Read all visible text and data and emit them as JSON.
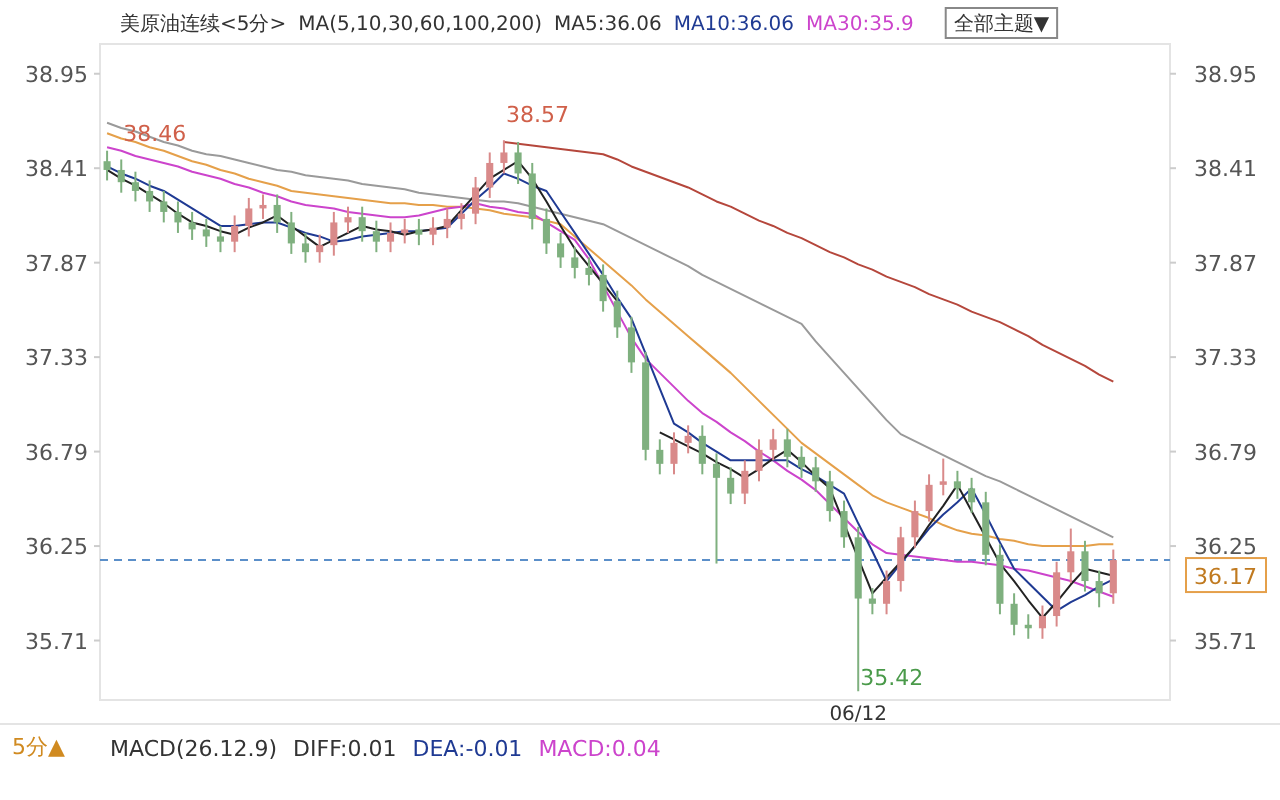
{
  "chart_data": {
    "type": "candlestick",
    "categories": [
      null,
      null,
      null,
      null,
      null,
      null,
      null,
      null,
      null,
      null,
      null,
      null,
      null,
      null,
      null,
      null,
      null,
      null,
      null,
      null,
      null,
      null,
      null,
      null,
      null,
      null,
      null,
      null,
      null,
      null,
      null,
      null,
      null,
      null,
      null,
      null,
      null,
      null,
      null,
      null,
      null,
      null,
      null,
      null,
      null,
      null,
      null,
      null,
      null,
      null,
      null,
      null,
      null,
      "06/12",
      null,
      null,
      null,
      null,
      null,
      null,
      null,
      null,
      null,
      null,
      null,
      null,
      null,
      null,
      null,
      null,
      null,
      null
    ],
    "ohlc": [
      [
        38.45,
        38.51,
        38.34,
        38.4
      ],
      [
        38.4,
        38.46,
        38.27,
        38.33
      ],
      [
        38.33,
        38.39,
        38.22,
        38.28
      ],
      [
        38.28,
        38.34,
        38.16,
        38.22
      ],
      [
        38.22,
        38.28,
        38.1,
        38.16
      ],
      [
        38.16,
        38.22,
        38.04,
        38.1
      ],
      [
        38.1,
        38.16,
        38.0,
        38.06
      ],
      [
        38.06,
        38.12,
        37.96,
        38.02
      ],
      [
        38.02,
        38.08,
        37.93,
        37.99
      ],
      [
        37.99,
        38.14,
        37.93,
        38.08
      ],
      [
        38.08,
        38.24,
        38.02,
        38.18
      ],
      [
        38.18,
        38.26,
        38.12,
        38.2
      ],
      [
        38.2,
        38.26,
        38.04,
        38.1
      ],
      [
        38.1,
        38.16,
        37.92,
        37.98
      ],
      [
        37.98,
        38.04,
        37.87,
        37.93
      ],
      [
        37.93,
        38.03,
        37.87,
        37.97
      ],
      [
        37.97,
        38.16,
        37.91,
        38.1
      ],
      [
        38.1,
        38.19,
        38.04,
        38.13
      ],
      [
        38.13,
        38.19,
        37.99,
        38.05
      ],
      [
        38.05,
        38.11,
        37.93,
        37.99
      ],
      [
        37.99,
        38.1,
        37.93,
        38.04
      ],
      [
        38.04,
        38.12,
        37.98,
        38.06
      ],
      [
        38.06,
        38.12,
        37.97,
        38.03
      ],
      [
        38.03,
        38.13,
        37.97,
        38.07
      ],
      [
        38.07,
        38.18,
        38.01,
        38.12
      ],
      [
        38.12,
        38.21,
        38.06,
        38.15
      ],
      [
        38.15,
        38.36,
        38.09,
        38.3
      ],
      [
        38.3,
        38.5,
        38.24,
        38.44
      ],
      [
        38.44,
        38.57,
        38.38,
        38.5
      ],
      [
        38.5,
        38.56,
        38.32,
        38.38
      ],
      [
        38.38,
        38.44,
        38.06,
        38.12
      ],
      [
        38.12,
        38.18,
        37.92,
        37.98
      ],
      [
        37.98,
        38.04,
        37.84,
        37.9
      ],
      [
        37.9,
        37.96,
        37.78,
        37.84
      ],
      [
        37.84,
        37.9,
        37.74,
        37.8
      ],
      [
        37.8,
        37.86,
        37.59,
        37.65
      ],
      [
        37.65,
        37.71,
        37.44,
        37.5
      ],
      [
        37.5,
        37.56,
        37.24,
        37.3
      ],
      [
        37.3,
        37.36,
        36.74,
        36.8
      ],
      [
        36.8,
        36.86,
        36.66,
        36.72
      ],
      [
        36.72,
        36.9,
        36.66,
        36.84
      ],
      [
        36.84,
        36.94,
        36.78,
        36.88
      ],
      [
        36.88,
        36.94,
        36.66,
        36.72
      ],
      [
        36.72,
        36.78,
        36.15,
        36.64
      ],
      [
        36.64,
        36.7,
        36.49,
        36.55
      ],
      [
        36.55,
        36.74,
        36.49,
        36.68
      ],
      [
        36.68,
        36.86,
        36.62,
        36.8
      ],
      [
        36.8,
        36.92,
        36.74,
        36.86
      ],
      [
        36.86,
        36.92,
        36.7,
        36.76
      ],
      [
        36.76,
        36.82,
        36.64,
        36.7
      ],
      [
        36.7,
        36.76,
        36.56,
        36.62
      ],
      [
        36.62,
        36.68,
        36.39,
        36.45
      ],
      [
        36.45,
        36.51,
        36.24,
        36.3
      ],
      [
        36.3,
        36.36,
        35.42,
        35.95
      ],
      [
        35.95,
        36.01,
        35.86,
        35.92
      ],
      [
        35.92,
        36.11,
        35.86,
        36.05
      ],
      [
        36.05,
        36.36,
        35.99,
        36.3
      ],
      [
        36.3,
        36.51,
        36.24,
        36.45
      ],
      [
        36.45,
        36.66,
        36.39,
        36.6
      ],
      [
        36.6,
        36.75,
        36.54,
        36.62
      ],
      [
        36.62,
        36.68,
        36.52,
        36.58
      ],
      [
        36.58,
        36.64,
        36.44,
        36.5
      ],
      [
        36.5,
        36.56,
        36.14,
        36.2
      ],
      [
        36.2,
        36.26,
        35.86,
        35.92
      ],
      [
        35.92,
        35.98,
        35.74,
        35.8
      ],
      [
        35.8,
        35.86,
        35.72,
        35.78
      ],
      [
        35.78,
        35.91,
        35.72,
        35.85
      ],
      [
        35.85,
        36.16,
        35.79,
        36.1
      ],
      [
        36.1,
        36.35,
        36.04,
        36.22
      ],
      [
        36.22,
        36.28,
        35.99,
        36.05
      ],
      [
        36.05,
        36.11,
        35.9,
        35.98
      ],
      [
        35.98,
        36.23,
        35.92,
        36.17
      ]
    ],
    "series": [
      {
        "type": "line",
        "color": "#b5473c",
        "values": [
          null,
          null,
          null,
          null,
          null,
          null,
          null,
          null,
          null,
          null,
          null,
          null,
          null,
          null,
          null,
          null,
          null,
          null,
          null,
          null,
          null,
          null,
          null,
          null,
          null,
          null,
          null,
          null,
          38.56,
          38.55,
          38.54,
          38.53,
          38.52,
          38.51,
          38.5,
          38.49,
          38.46,
          38.42,
          38.39,
          38.36,
          38.33,
          38.3,
          38.26,
          38.22,
          38.19,
          38.15,
          38.11,
          38.08,
          38.04,
          38.01,
          37.97,
          37.93,
          37.9,
          37.86,
          37.83,
          37.79,
          37.76,
          37.73,
          37.69,
          37.66,
          37.63,
          37.59,
          37.56,
          37.53,
          37.49,
          37.45,
          37.4,
          37.36,
          37.32,
          37.28,
          37.23,
          37.19
        ]
      },
      {
        "type": "line",
        "color": "#9a9a9a",
        "values": [
          38.67,
          38.64,
          38.62,
          38.59,
          38.56,
          38.54,
          38.51,
          38.49,
          38.48,
          38.46,
          38.44,
          38.42,
          38.4,
          38.39,
          38.37,
          38.36,
          38.35,
          38.34,
          38.32,
          38.31,
          38.3,
          38.29,
          38.27,
          38.26,
          38.25,
          38.24,
          38.23,
          38.22,
          38.22,
          38.21,
          38.19,
          38.17,
          38.15,
          38.13,
          38.11,
          38.09,
          38.05,
          38.01,
          37.97,
          37.93,
          37.89,
          37.85,
          37.8,
          37.76,
          37.72,
          37.68,
          37.64,
          37.6,
          37.56,
          37.52,
          37.42,
          37.33,
          37.24,
          37.15,
          37.06,
          36.97,
          36.89,
          36.85,
          36.81,
          36.77,
          36.73,
          36.69,
          36.65,
          36.62,
          36.58,
          36.54,
          36.5,
          36.46,
          36.42,
          36.38,
          36.34,
          36.3
        ]
      },
      {
        "type": "line",
        "color": "#e5a04a",
        "values": [
          38.61,
          38.58,
          38.56,
          38.53,
          38.51,
          38.48,
          38.45,
          38.43,
          38.4,
          38.38,
          38.35,
          38.33,
          38.31,
          38.28,
          38.27,
          38.26,
          38.25,
          38.24,
          38.23,
          38.22,
          38.21,
          38.21,
          38.2,
          38.2,
          38.19,
          38.19,
          38.18,
          38.17,
          38.15,
          38.14,
          38.13,
          38.11,
          38.09,
          38.02,
          37.95,
          37.88,
          37.81,
          37.74,
          37.66,
          37.59,
          37.52,
          37.45,
          37.38,
          37.31,
          37.24,
          37.16,
          37.08,
          37.0,
          36.92,
          36.84,
          36.78,
          36.72,
          36.66,
          36.6,
          36.54,
          36.5,
          36.47,
          36.44,
          36.41,
          36.37,
          36.34,
          36.32,
          36.31,
          36.29,
          36.28,
          36.26,
          36.25,
          36.25,
          36.25,
          36.25,
          36.26,
          36.26
        ]
      },
      {
        "type": "line",
        "color": "#cc44cc",
        "values": [
          38.53,
          38.51,
          38.48,
          38.46,
          38.44,
          38.42,
          38.39,
          38.37,
          38.35,
          38.32,
          38.3,
          38.27,
          38.25,
          38.22,
          38.2,
          38.19,
          38.18,
          38.16,
          38.15,
          38.14,
          38.13,
          38.13,
          38.14,
          38.16,
          38.18,
          38.19,
          38.21,
          38.19,
          38.18,
          38.16,
          38.15,
          38.1,
          38.05,
          38.0,
          37.89,
          37.74,
          37.59,
          37.44,
          37.32,
          37.24,
          37.16,
          37.08,
          37.01,
          36.96,
          36.9,
          36.85,
          36.79,
          36.74,
          36.68,
          36.63,
          36.57,
          36.49,
          36.41,
          36.33,
          36.26,
          36.21,
          36.2,
          36.19,
          36.18,
          36.17,
          36.16,
          36.16,
          36.15,
          36.14,
          36.12,
          36.11,
          36.09,
          36.07,
          36.05,
          36.02,
          35.99,
          35.96
        ]
      },
      {
        "type": "line",
        "color": "#1f3a93",
        "values": [
          38.42,
          38.38,
          38.35,
          38.31,
          38.28,
          38.23,
          38.18,
          38.13,
          38.08,
          38.08,
          38.09,
          38.1,
          38.1,
          38.07,
          38.04,
          38.02,
          37.99,
          38.0,
          38.02,
          38.03,
          38.04,
          38.05,
          38.05,
          38.06,
          38.07,
          38.15,
          38.23,
          38.3,
          38.38,
          38.35,
          38.31,
          38.28,
          38.16,
          38.04,
          37.92,
          37.8,
          37.67,
          37.55,
          37.35,
          37.15,
          36.95,
          36.9,
          36.84,
          36.79,
          36.74,
          36.74,
          36.74,
          36.74,
          36.74,
          36.69,
          36.65,
          36.6,
          36.55,
          36.38,
          36.22,
          36.05,
          36.15,
          36.25,
          36.35,
          36.43,
          36.5,
          36.58,
          36.43,
          36.27,
          36.12,
          36.04,
          35.96,
          35.88,
          35.93,
          35.97,
          36.02,
          36.06
        ]
      },
      {
        "type": "line",
        "color": "#222222",
        "values": [
          38.4,
          38.35,
          38.31,
          38.26,
          38.21,
          38.15,
          38.1,
          38.08,
          38.05,
          38.03,
          38.07,
          38.1,
          38.14,
          38.08,
          38.02,
          37.96,
          38.0,
          38.04,
          38.08,
          38.06,
          38.05,
          38.03,
          38.05,
          38.06,
          38.08,
          38.17,
          38.26,
          38.35,
          38.4,
          38.45,
          38.35,
          38.22,
          38.08,
          37.95,
          37.85,
          37.75,
          37.65,
          null,
          null,
          36.9,
          36.86,
          36.82,
          36.78,
          36.73,
          36.69,
          36.64,
          36.69,
          36.75,
          36.8,
          36.73,
          36.65,
          36.58,
          36.38,
          36.18,
          35.98,
          36.07,
          36.16,
          36.25,
          36.37,
          36.48,
          36.6,
          36.45,
          36.3,
          36.15,
          36.05,
          35.94,
          35.84,
          35.93,
          36.03,
          36.12,
          36.1,
          36.08
        ]
      }
    ],
    "ylim": [
      35.37,
      39.12
    ],
    "yticks": [
      38.95,
      38.41,
      37.87,
      37.33,
      36.79,
      36.25,
      35.71
    ],
    "y2lim": [
      35.37,
      39.12
    ],
    "y2ticks": [
      38.95,
      38.41,
      37.87,
      37.33,
      36.79,
      36.25,
      35.71
    ],
    "ref_lines": [
      {
        "axis": "y2",
        "value": 36.17,
        "label": "36.17",
        "color": "#5b8fc9",
        "line_style": "dashed"
      }
    ],
    "annotations": [
      "美原油连续<5分>",
      "MA(5,10,30,60,100,200)",
      "MA5:36.06",
      "MA10:36.06",
      "MA30:35.9",
      "全部主题▼",
      "5分▲",
      "MACD(26.12.9)",
      "DIFF:0.01",
      "DEA:-0.01",
      "MACD:0.04",
      {
        "text": "38.46",
        "y": 38.46
      },
      {
        "text": "38.57",
        "y": 38.57
      },
      {
        "text": "35.42",
        "x": "06/12",
        "y": 35.42
      }
    ]
  }
}
